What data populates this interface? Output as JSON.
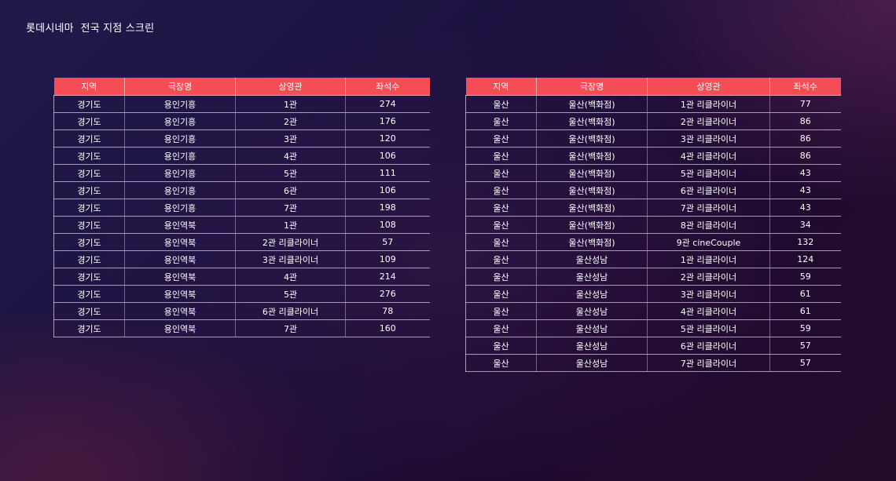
{
  "title": "롯데시네마  전국 지점 스크린",
  "columns": [
    "지역",
    "극장명",
    "상영관",
    "좌석수"
  ],
  "left_table": {
    "rows": [
      [
        "경기도",
        "용인기흥",
        "1관",
        "274"
      ],
      [
        "경기도",
        "용인기흥",
        "2관",
        "176"
      ],
      [
        "경기도",
        "용인기흥",
        "3관",
        "120"
      ],
      [
        "경기도",
        "용인기흥",
        "4관",
        "106"
      ],
      [
        "경기도",
        "용인기흥",
        "5관",
        "111"
      ],
      [
        "경기도",
        "용인기흥",
        "6관",
        "106"
      ],
      [
        "경기도",
        "용인기흥",
        "7관",
        "198"
      ],
      [
        "경기도",
        "용인역북",
        "1관",
        "108"
      ],
      [
        "경기도",
        "용인역북",
        "2관 리클라이너",
        "57"
      ],
      [
        "경기도",
        "용인역북",
        "3관 리클라이너",
        "109"
      ],
      [
        "경기도",
        "용인역북",
        "4관",
        "214"
      ],
      [
        "경기도",
        "용인역북",
        "5관",
        "276"
      ],
      [
        "경기도",
        "용인역북",
        "6관 리클라이너",
        "78"
      ],
      [
        "경기도",
        "용인역북",
        "7관",
        "160"
      ]
    ]
  },
  "right_table": {
    "rows": [
      [
        "울산",
        "울산(백화점)",
        "1관 리클라이너",
        "77"
      ],
      [
        "울산",
        "울산(백화점)",
        "2관 리클라이너",
        "86"
      ],
      [
        "울산",
        "울산(백화점)",
        "3관 리클라이너",
        "86"
      ],
      [
        "울산",
        "울산(백화점)",
        "4관 리클라이너",
        "86"
      ],
      [
        "울산",
        "울산(백화점)",
        "5관 리클라이너",
        "43"
      ],
      [
        "울산",
        "울산(백화점)",
        "6관 리클라이너",
        "43"
      ],
      [
        "울산",
        "울산(백화점)",
        "7관 리클라이너",
        "43"
      ],
      [
        "울산",
        "울산(백화점)",
        "8관 리클라이너",
        "34"
      ],
      [
        "울산",
        "울산(백화점)",
        "9관 cineCouple",
        "132"
      ],
      [
        "울산",
        "울산성남",
        "1관 리클라이너",
        "124"
      ],
      [
        "울산",
        "울산성남",
        "2관 리클라이너",
        "59"
      ],
      [
        "울산",
        "울산성남",
        "3관 리클라이너",
        "61"
      ],
      [
        "울산",
        "울산성남",
        "4관 리클라이너",
        "61"
      ],
      [
        "울산",
        "울산성남",
        "5관 리클라이너",
        "59"
      ],
      [
        "울산",
        "울산성남",
        "6관 리클라이너",
        "57"
      ],
      [
        "울산",
        "울산성남",
        "7관 리클라이너",
        "57"
      ]
    ]
  }
}
